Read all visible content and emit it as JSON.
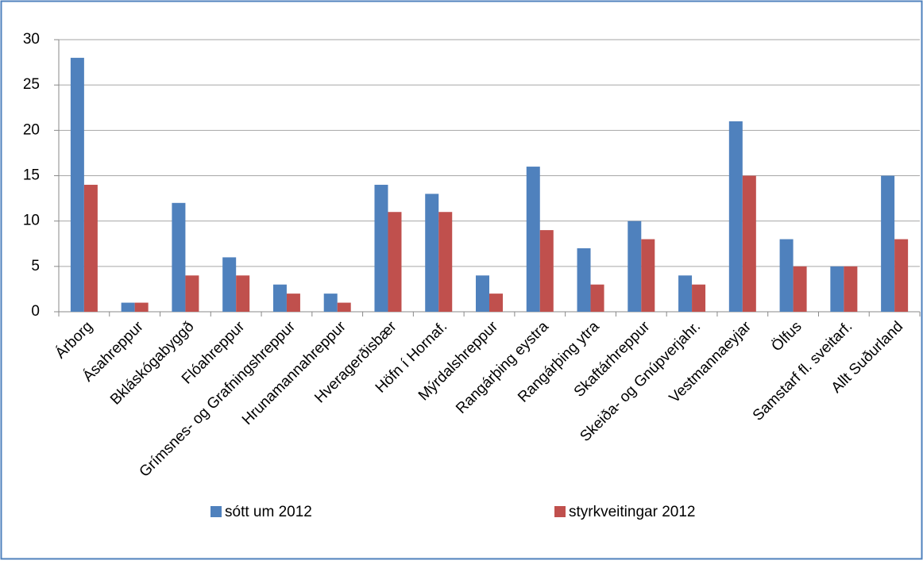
{
  "chart_data": {
    "type": "bar",
    "categories": [
      "Árborg",
      "Ásahreppur",
      "Bkláskógabyggð",
      "Flóahreppur",
      "Grímsnes- og Grafningshreppur",
      "Hrunamannahreppur",
      "Hveragerðisbær",
      "Höfn í Hornaf.",
      "Mýrdalshreppur",
      "Rangárþing eystra",
      "Rangárþing ytra",
      "Skaftárhreppur",
      "Skeiða- og Gnúpverjahr.",
      "Vestmannaeyjar",
      "Ölfus",
      "Samstarf fl. sveitarf.",
      "Allt Suðurland"
    ],
    "series": [
      {
        "name": "sótt um 2012",
        "color": "#4f81bd",
        "values": [
          28,
          1,
          12,
          6,
          3,
          2,
          14,
          13,
          4,
          16,
          7,
          10,
          4,
          21,
          8,
          5,
          15
        ]
      },
      {
        "name": "styrkveitingar 2012",
        "color": "#c0504d",
        "values": [
          14,
          1,
          4,
          4,
          2,
          1,
          11,
          11,
          2,
          9,
          3,
          8,
          3,
          15,
          5,
          5,
          8
        ]
      }
    ],
    "ylim": [
      0,
      30
    ],
    "yticks": [
      0,
      5,
      10,
      15,
      20,
      25,
      30
    ],
    "grid": true,
    "legend": "bottom"
  }
}
